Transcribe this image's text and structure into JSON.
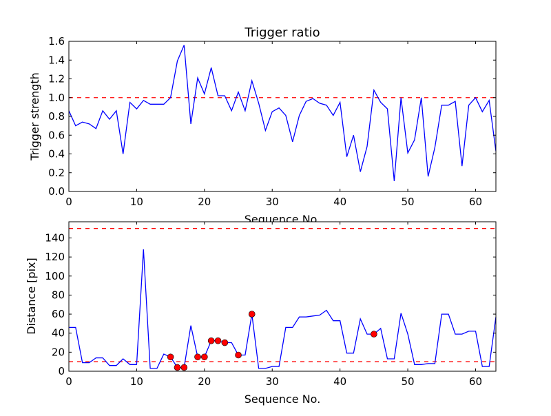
{
  "chart_data": [
    {
      "type": "line",
      "title": "Trigger ratio",
      "xlabel": "Sequence No.",
      "ylabel": "Trigger strength",
      "xlim": [
        0,
        63
      ],
      "ylim": [
        0,
        1.6
      ],
      "xticks": [
        0,
        10,
        20,
        30,
        40,
        50,
        60
      ],
      "yticks": [
        0.0,
        0.2,
        0.4,
        0.6,
        0.8,
        1.0,
        1.2,
        1.4,
        1.6
      ],
      "ytick_labels": [
        "0.0",
        "0.2",
        "0.4",
        "0.6",
        "0.8",
        "1.0",
        "1.2",
        "1.4",
        "1.6"
      ],
      "threshold_lines": [
        1.0
      ],
      "line_color": "#0000ff",
      "threshold_color": "#ff0000",
      "values": [
        0.86,
        0.7,
        0.74,
        0.72,
        0.67,
        0.86,
        0.77,
        0.86,
        0.4,
        0.95,
        0.88,
        0.97,
        0.93,
        0.93,
        0.93,
        1.0,
        1.39,
        1.56,
        0.72,
        1.21,
        1.04,
        1.32,
        1.02,
        1.02,
        0.86,
        1.06,
        0.86,
        1.18,
        0.94,
        0.65,
        0.85,
        0.89,
        0.81,
        0.53,
        0.81,
        0.96,
        0.99,
        0.94,
        0.92,
        0.81,
        0.95,
        0.37,
        0.6,
        0.21,
        0.48,
        1.08,
        0.95,
        0.88,
        0.11,
        1.0,
        0.41,
        0.55,
        1.0,
        0.16,
        0.47,
        0.92,
        0.92,
        0.96,
        0.27,
        0.92,
        1.0,
        0.85,
        0.97,
        0.43
      ]
    },
    {
      "type": "line",
      "title": "",
      "xlabel": "Sequence No.",
      "ylabel": "Distance [pix]",
      "xlim": [
        0,
        63
      ],
      "ylim": [
        0,
        157
      ],
      "xticks": [
        0,
        10,
        20,
        30,
        40,
        50,
        60
      ],
      "yticks": [
        0,
        20,
        40,
        60,
        80,
        100,
        120,
        140
      ],
      "ytick_labels": [
        "0",
        "20",
        "40",
        "60",
        "80",
        "100",
        "120",
        "140"
      ],
      "threshold_lines": [
        10,
        150
      ],
      "line_color": "#0000ff",
      "threshold_color": "#ff0000",
      "marker_color": "#ff0000",
      "values": [
        46,
        46,
        9,
        9,
        14,
        14,
        6,
        6,
        13,
        7,
        7,
        128,
        3,
        3,
        18,
        15,
        4,
        4,
        48,
        15,
        15,
        32,
        32,
        30,
        30,
        17,
        17,
        60,
        3,
        3,
        5,
        5,
        46,
        46,
        57,
        57,
        58,
        59,
        64,
        53,
        53,
        19,
        19,
        55,
        39,
        39,
        45,
        13,
        13,
        61,
        39,
        7,
        7,
        8,
        8,
        60,
        60,
        39,
        39,
        42,
        42,
        5,
        5,
        57
      ],
      "highlighted_points": [
        15,
        16,
        17,
        19,
        20,
        21,
        22,
        23,
        25,
        27,
        45
      ]
    }
  ]
}
